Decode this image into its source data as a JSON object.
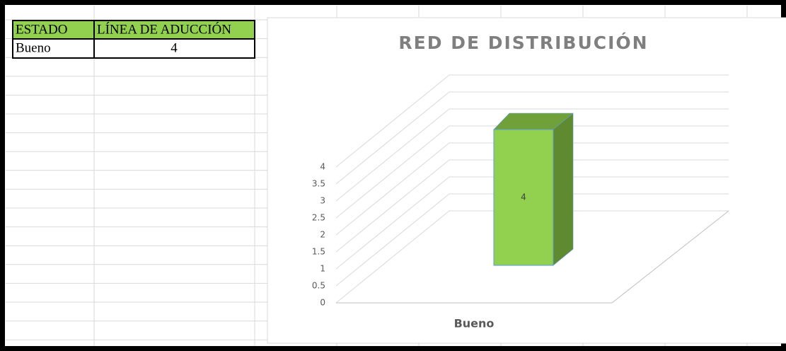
{
  "table": {
    "header": [
      "ESTADO",
      "LÍNEA DE ADUCCIÓN"
    ],
    "rows": [
      [
        "Bueno",
        4
      ]
    ]
  },
  "chart_data": {
    "type": "bar",
    "title": "RED DE DISTRIBUCIÓN",
    "categories": [
      "Bueno"
    ],
    "values": [
      4
    ],
    "color": "#92d050",
    "ylim": [
      0,
      4
    ],
    "yticks": [
      0,
      0.5,
      1,
      1.5,
      2,
      2.5,
      3,
      3.5,
      4
    ],
    "grid": true
  }
}
